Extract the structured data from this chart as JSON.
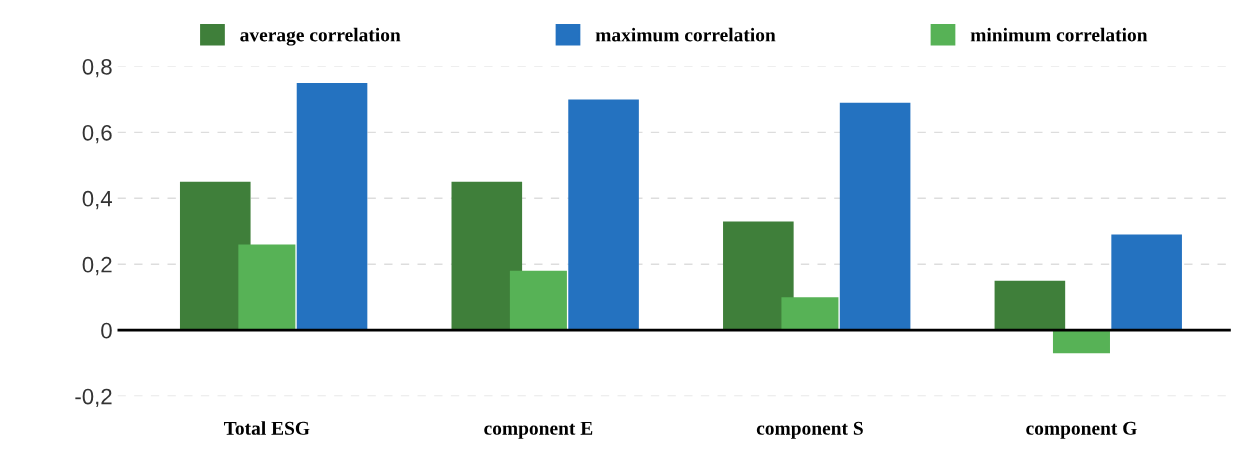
{
  "chart_data": {
    "type": "bar",
    "categories": [
      "Total ESG",
      "component E",
      "component S",
      "component G"
    ],
    "series": [
      {
        "name": "average correlation",
        "color": "#3f7f3a",
        "values": [
          0.45,
          0.45,
          0.33,
          0.15
        ]
      },
      {
        "name": "maximum correlation",
        "color": "#2472c0",
        "values": [
          0.75,
          0.7,
          0.69,
          0.29
        ]
      },
      {
        "name": "minimum correlation",
        "color": "#57b256",
        "values": [
          0.26,
          0.18,
          0.1,
          -0.07
        ]
      }
    ],
    "ylim": [
      -0.2,
      0.8
    ],
    "yticks": [
      {
        "value": -0.2,
        "label": "-0,2"
      },
      0,
      {
        "value": 0.2,
        "label": "0,2"
      },
      {
        "value": 0.4,
        "label": "0,4"
      },
      {
        "value": 0.6,
        "label": "0,6"
      },
      {
        "value": 0.8,
        "label": "0,8"
      }
    ],
    "grid": "y",
    "legend": "top"
  }
}
